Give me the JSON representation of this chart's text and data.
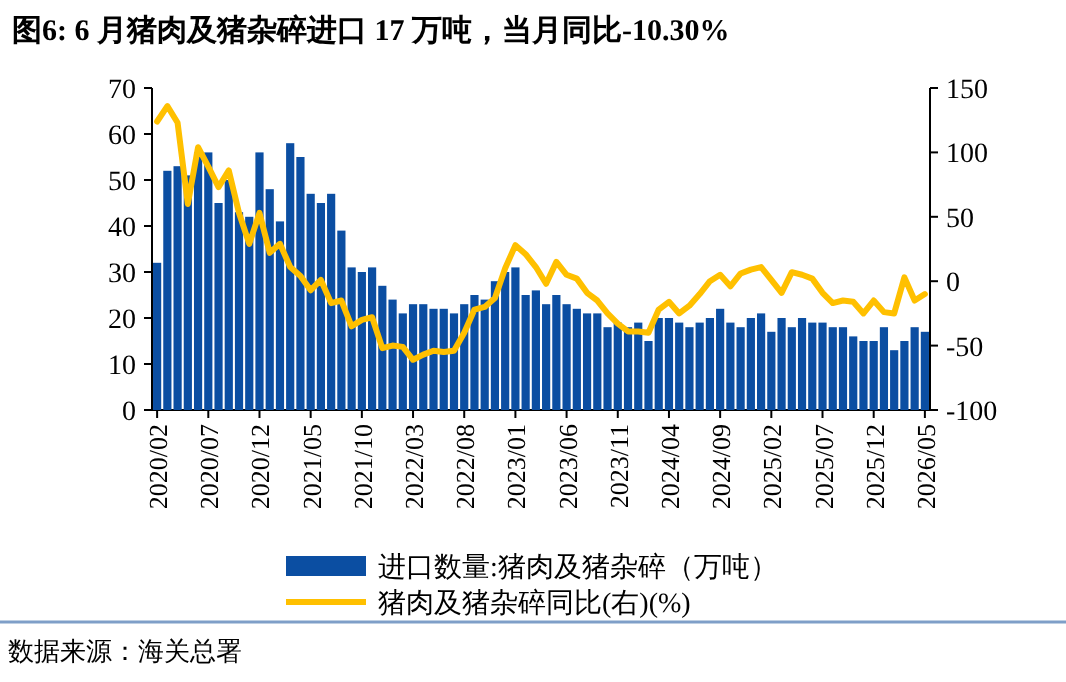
{
  "chart_data": {
    "type": "bar",
    "title": "图6: 6 月猪肉及猪杂碎进口 17 万吨，当月同比-10.30%",
    "categories": [
      "2020/02",
      null,
      null,
      null,
      null,
      "2020/07",
      null,
      null,
      null,
      null,
      "2020/12",
      null,
      null,
      null,
      null,
      "2021/05",
      null,
      null,
      null,
      null,
      "2021/10",
      null,
      null,
      null,
      null,
      "2022/03",
      null,
      null,
      null,
      null,
      "2022/08",
      null,
      null,
      null,
      null,
      "2023/01",
      null,
      null,
      null,
      null,
      "2023/06",
      null,
      null,
      null,
      null,
      "2023/11",
      null,
      null,
      null,
      null,
      "2024/04",
      null,
      null,
      null,
      null,
      "2024/09",
      null,
      null,
      null,
      null,
      "2025/02",
      null,
      null,
      null,
      null,
      "2025/07",
      null,
      null,
      null,
      null,
      "2025/12",
      null,
      null,
      null,
      null,
      "2026/05"
    ],
    "series": [
      {
        "name": "进口数量:猪肉及猪杂碎（万吨）",
        "color": "#0b4ea2",
        "values": [
          32,
          52,
          53,
          51,
          56,
          56,
          45,
          50,
          43,
          42,
          56,
          48,
          41,
          58,
          55,
          47,
          45,
          47,
          39,
          31,
          30,
          31,
          27,
          24,
          21,
          23,
          23,
          22,
          22,
          21,
          23,
          25,
          24,
          28,
          30,
          31,
          25,
          26,
          23,
          25,
          23,
          22,
          21,
          21,
          18,
          19,
          18,
          19,
          15,
          20,
          20,
          19,
          18,
          19,
          20,
          22,
          19,
          18,
          20,
          21,
          17,
          20,
          18,
          20,
          19,
          19,
          18,
          18,
          16,
          15,
          15,
          18,
          13,
          15,
          18,
          17
        ]
      },
      {
        "name": "猪肉及猪杂碎同比(右)(%)",
        "type": "line",
        "axis": "y2",
        "color": "#ffc000",
        "values": [
          124,
          136,
          123,
          60,
          104,
          89,
          73,
          86,
          53,
          29,
          53,
          22,
          29,
          11,
          4,
          -7,
          1,
          -17,
          -15,
          -35,
          -30,
          -28,
          -52,
          -50,
          -51,
          -61,
          -57,
          -54,
          -55,
          -54,
          -40,
          -22,
          -20,
          -13,
          10,
          28,
          21,
          11,
          -2,
          15,
          5,
          2,
          -9,
          -15,
          -25,
          -33,
          -39,
          -39,
          -40,
          -22,
          -16,
          -25,
          -19,
          -10,
          0,
          5,
          -4,
          6,
          9,
          11,
          1,
          -9,
          7,
          5,
          2,
          -9,
          -17,
          -15,
          -16,
          -25,
          -15,
          -24,
          -25,
          3,
          -15,
          -10
        ]
      }
    ],
    "ylim": [
      0,
      70
    ],
    "yticks": [
      0,
      10,
      20,
      30,
      40,
      50,
      60,
      70
    ],
    "y2lim": [
      -100,
      150
    ],
    "y2ticks": [
      -100,
      -50,
      0,
      50,
      100,
      150
    ],
    "legend": "bottom",
    "annotations": [
      "数据来源：海关总署"
    ]
  }
}
